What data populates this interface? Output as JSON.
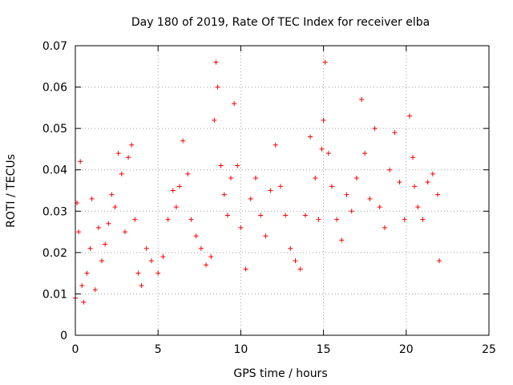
{
  "chart_data": {
    "type": "scatter",
    "title": "Day 180 of 2019, Rate Of TEC Index for receiver elba",
    "xlabel": "GPS time / hours",
    "ylabel": "ROTI / TECUs",
    "xlim": [
      0,
      25
    ],
    "ylim": [
      0,
      0.07
    ],
    "x_ticks": [
      0,
      5,
      10,
      15,
      20,
      25
    ],
    "x_tick_labels": [
      "0",
      "5",
      "10",
      "15",
      "20",
      "25"
    ],
    "y_ticks": [
      0,
      0.01,
      0.02,
      0.03,
      0.04,
      0.05,
      0.06,
      0.07
    ],
    "y_tick_labels": [
      "0",
      "0.01",
      "0.02",
      "0.03",
      "0.04",
      "0.05",
      "0.06",
      "0.07"
    ],
    "grid": true,
    "marker": "+",
    "color": "#ff0000",
    "series": [
      {
        "x": [
          0.0,
          0.1,
          0.2,
          0.3,
          0.4,
          0.5,
          0.7,
          0.9,
          1.0,
          1.2,
          1.4,
          1.6,
          1.8,
          2.0,
          2.2,
          2.4,
          2.6,
          2.8,
          3.0,
          3.2,
          3.4,
          3.6,
          3.8,
          4.0,
          4.3,
          4.6,
          5.0,
          5.3,
          5.6,
          5.9,
          6.1,
          6.3,
          6.5,
          6.8,
          7.0,
          7.3,
          7.6,
          7.9,
          8.2,
          8.4,
          8.5,
          8.6,
          8.8,
          9.0,
          9.2,
          9.4,
          9.6,
          9.8,
          10.0,
          10.3,
          10.6,
          10.9,
          11.2,
          11.5,
          11.8,
          12.1,
          12.4,
          12.7,
          13.0,
          13.3,
          13.6,
          13.9,
          14.2,
          14.5,
          14.7,
          14.9,
          15.0,
          15.1,
          15.3,
          15.5,
          15.8,
          16.1,
          16.4,
          16.7,
          17.0,
          17.3,
          17.5,
          17.8,
          18.1,
          18.4,
          18.7,
          19.0,
          19.3,
          19.6,
          19.9,
          20.2,
          20.4,
          20.5,
          20.7,
          21.0,
          21.3,
          21.6,
          21.9,
          22.0
        ],
        "y": [
          0.009,
          0.032,
          0.025,
          0.042,
          0.012,
          0.008,
          0.015,
          0.021,
          0.033,
          0.011,
          0.026,
          0.018,
          0.022,
          0.027,
          0.034,
          0.031,
          0.044,
          0.039,
          0.025,
          0.043,
          0.046,
          0.028,
          0.015,
          0.012,
          0.021,
          0.018,
          0.015,
          0.019,
          0.028,
          0.035,
          0.031,
          0.036,
          0.047,
          0.039,
          0.028,
          0.024,
          0.021,
          0.017,
          0.019,
          0.052,
          0.066,
          0.06,
          0.041,
          0.034,
          0.029,
          0.038,
          0.056,
          0.041,
          0.026,
          0.016,
          0.033,
          0.038,
          0.029,
          0.024,
          0.035,
          0.046,
          0.036,
          0.029,
          0.021,
          0.018,
          0.016,
          0.029,
          0.048,
          0.038,
          0.028,
          0.045,
          0.052,
          0.066,
          0.044,
          0.036,
          0.028,
          0.023,
          0.034,
          0.03,
          0.038,
          0.057,
          0.044,
          0.033,
          0.05,
          0.031,
          0.026,
          0.04,
          0.049,
          0.037,
          0.028,
          0.053,
          0.043,
          0.036,
          0.031,
          0.028,
          0.037,
          0.039,
          0.034,
          0.018
        ]
      }
    ]
  }
}
